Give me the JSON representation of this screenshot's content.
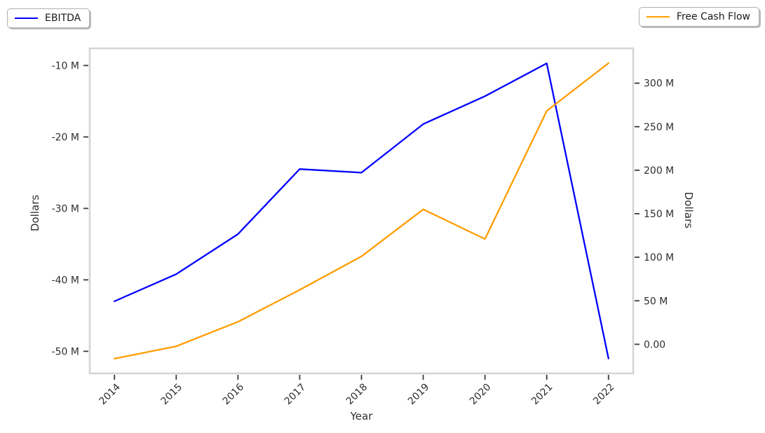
{
  "chart_data": {
    "type": "line",
    "title": "",
    "x": [
      2014,
      2015,
      2016,
      2017,
      2018,
      2019,
      2020,
      2021,
      2022
    ],
    "series": [
      {
        "name": "EBITDA",
        "axis": "left",
        "color": "#0000ff",
        "unit": "dollars_millions",
        "values_millions": [
          -43.0,
          -39.2,
          -33.6,
          -24.5,
          -25.0,
          -18.2,
          -14.3,
          -9.7,
          -51.0
        ]
      },
      {
        "name": "Free Cash Flow",
        "axis": "right",
        "color": "#ff9d00",
        "unit": "dollars_millions",
        "values_millions": [
          -16.5,
          -2.3,
          25.8,
          62.5,
          101.0,
          155.0,
          121.0,
          268.0,
          323.0
        ]
      }
    ],
    "x_axis": {
      "label": "Year",
      "tick_values": [
        2014,
        2015,
        2016,
        2017,
        2018,
        2019,
        2020,
        2021,
        2022
      ],
      "tick_labels": [
        "2014",
        "2015",
        "2016",
        "2017",
        "2018",
        "2019",
        "2020",
        "2021",
        "2022"
      ],
      "lim": [
        2013.6,
        2022.4
      ],
      "tick_rotation_deg": 45
    },
    "left_axis": {
      "label": "Dollars",
      "tick_values_millions": [
        -10,
        -20,
        -30,
        -40,
        -50
      ],
      "tick_labels": [
        "-10 M",
        "-20 M",
        "-30 M",
        "-40 M",
        "-50 M"
      ],
      "lim_millions": [
        -53.1,
        -7.6
      ]
    },
    "right_axis": {
      "label": "Dollars",
      "tick_values_millions": [
        300,
        250,
        200,
        150,
        100,
        50,
        0
      ],
      "tick_labels": [
        "300 M",
        "250 M",
        "200 M",
        "150 M",
        "100 M",
        "50 M",
        "0.00"
      ],
      "lim_millions": [
        -33.5,
        340
      ]
    },
    "grid": false,
    "legend_position": [
      "top-left",
      "top-right"
    ]
  },
  "legend": {
    "left_label": "EBITDA",
    "right_label": "Free Cash Flow"
  },
  "style": {
    "frame_color": "#d4d4d4",
    "tick_color": "#3a3a3a",
    "text_color": "#2e2e2e",
    "background": "#ffffff"
  }
}
